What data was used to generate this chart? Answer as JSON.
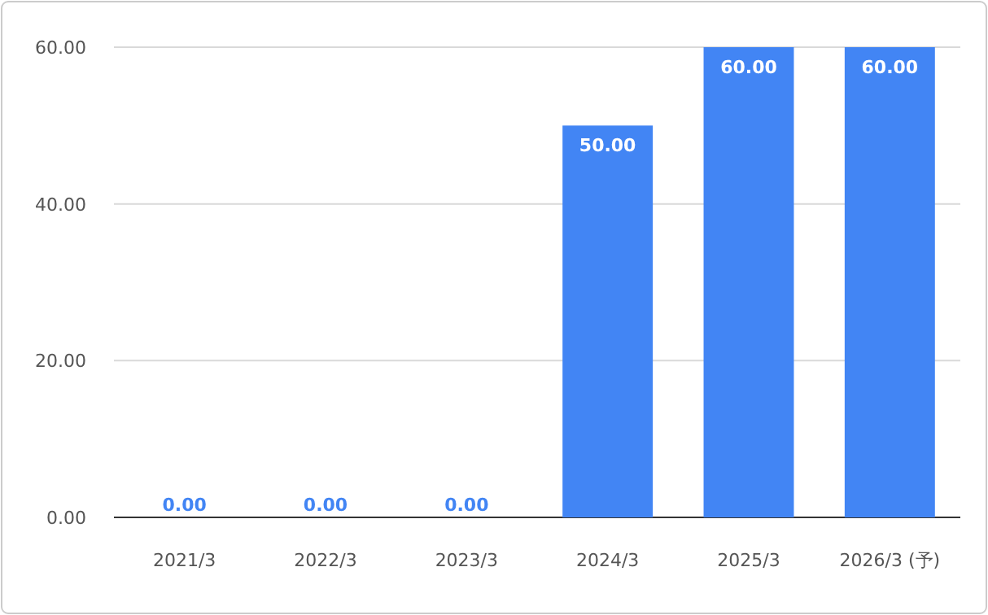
{
  "chart_data": {
    "type": "bar",
    "categories": [
      "2021/3",
      "2022/3",
      "2023/3",
      "2024/3",
      "2025/3",
      "2026/3 (予)"
    ],
    "values": [
      0,
      0,
      0,
      50,
      60,
      60
    ],
    "value_labels": [
      "0.00",
      "0.00",
      "0.00",
      "50.00",
      "60.00",
      "60.00"
    ],
    "color": "#4285f4",
    "ylim": [
      0,
      60
    ],
    "yticks": [
      {
        "value": 0,
        "label": "0.00"
      },
      {
        "value": 20,
        "label": "20.00"
      },
      {
        "value": 40,
        "label": "40.00"
      },
      {
        "value": 60,
        "label": "60.00"
      }
    ],
    "grid": "y"
  }
}
